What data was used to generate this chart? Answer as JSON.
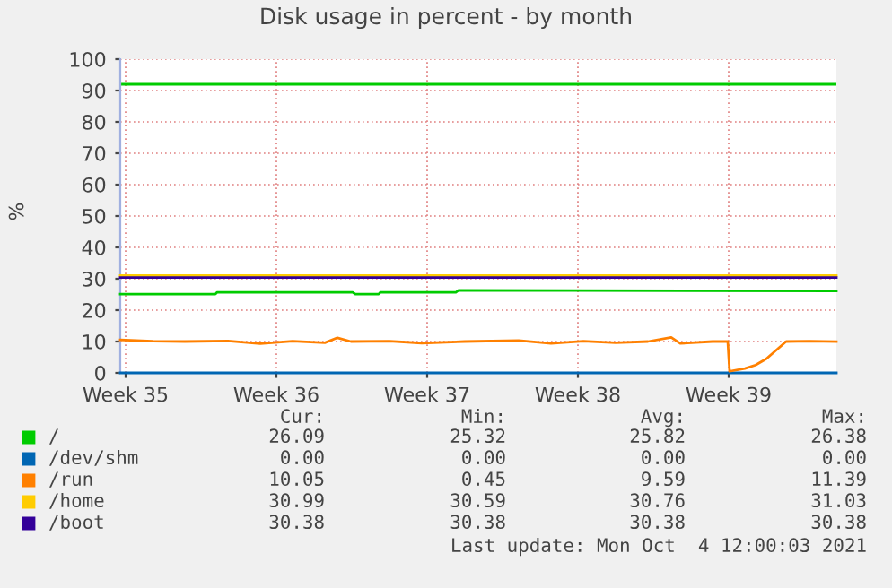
{
  "chart_data": {
    "type": "line",
    "title": "Disk usage in percent - by month",
    "ylabel": "%",
    "xlim": [
      "2021-09-02T08:00",
      "2021-10-05T14:00"
    ],
    "ylim": [
      0,
      100
    ],
    "xticks": [
      {
        "value": "2021-09-02T14:00",
        "label": "Week 35"
      },
      {
        "value": "2021-09-09T14:00",
        "label": "Week 36"
      },
      {
        "value": "2021-09-16T14:00",
        "label": "Week 37"
      },
      {
        "value": "2021-09-23T14:00",
        "label": "Week 38"
      },
      {
        "value": "2021-09-30T14:00",
        "label": "Week 39"
      }
    ],
    "yticks": [
      0,
      10,
      20,
      30,
      40,
      50,
      60,
      70,
      80,
      90,
      100
    ],
    "grid": true,
    "legend": "bottom",
    "series": [
      {
        "name": "/",
        "color": "#00cc00",
        "x": [
          "2021-09-02T08:00",
          "2021-09-06T18:00",
          "2021-09-06T20:00",
          "2021-09-13T03:00",
          "2021-09-13T06:00",
          "2021-09-14T08:00",
          "2021-09-14T10:00",
          "2021-09-17T22:00",
          "2021-09-18T01:00",
          "2021-10-05T14:00"
        ],
        "values": [
          25.1,
          25.1,
          25.7,
          25.7,
          25.1,
          25.1,
          25.7,
          25.7,
          26.3,
          26.1
        ]
      },
      {
        "name": "/dev/shm",
        "color": "#0066b3",
        "x": [
          "2021-09-02T08:00",
          "2021-10-05T14:00"
        ],
        "values": [
          0,
          0
        ]
      },
      {
        "name": "/run",
        "color": "#ff8000",
        "x": [
          "2021-09-02T08:00",
          "2021-09-03T20:00",
          "2021-09-05T08:00",
          "2021-09-07T08:00",
          "2021-09-08T20:00",
          "2021-09-10T08:00",
          "2021-09-11T20:00",
          "2021-09-12T10:00",
          "2021-09-13T01:00",
          "2021-09-14T20:00",
          "2021-09-16T08:00",
          "2021-09-18T08:00",
          "2021-09-20T20:00",
          "2021-09-22T08:00",
          "2021-09-23T20:00",
          "2021-09-25T08:00",
          "2021-09-26T20:00",
          "2021-09-27T22:00",
          "2021-09-28T08:00",
          "2021-09-29T20:00",
          "2021-09-30T13:00",
          "2021-09-30T15:00",
          "2021-10-01T08:00",
          "2021-10-01T20:00",
          "2021-10-02T08:00",
          "2021-10-02T20:00",
          "2021-10-03T06:00",
          "2021-10-04T08:00",
          "2021-10-05T14:00"
        ],
        "values": [
          10.5,
          10.1,
          10.0,
          10.2,
          9.3,
          10.1,
          9.6,
          11.2,
          10.0,
          10.1,
          9.5,
          10.0,
          10.3,
          9.4,
          10.1,
          9.6,
          10.0,
          11.3,
          9.4,
          10.0,
          10.0,
          0.5,
          1.4,
          2.5,
          4.5,
          7.5,
          10.0,
          10.1,
          10.0
        ]
      },
      {
        "name": "/home",
        "color": "#ffcc00",
        "x": [
          "2021-09-02T08:00",
          "2021-10-05T14:00"
        ],
        "values": [
          31.0,
          31.0
        ]
      },
      {
        "name": "/boot",
        "color": "#330099",
        "x": [
          "2021-09-02T08:00",
          "2021-10-05T14:00"
        ],
        "values": [
          30.4,
          30.4
        ]
      }
    ],
    "ref_lines": [
      {
        "axis": "y",
        "value": 92,
        "color": "#00cc00"
      }
    ],
    "annotations": [
      "Cur:",
      "Min:",
      "Avg:",
      "Max:",
      "26.09",
      "25.32",
      "25.82",
      "26.38",
      "0.00",
      "0.00",
      "0.00",
      "0.00",
      "10.05",
      "0.45",
      "9.59",
      "11.39",
      "30.99",
      "30.59",
      "30.76",
      "31.03",
      "30.38",
      "30.38",
      "30.38",
      "30.38",
      "Last update: Mon Oct  4 12:00:03 2021"
    ]
  }
}
